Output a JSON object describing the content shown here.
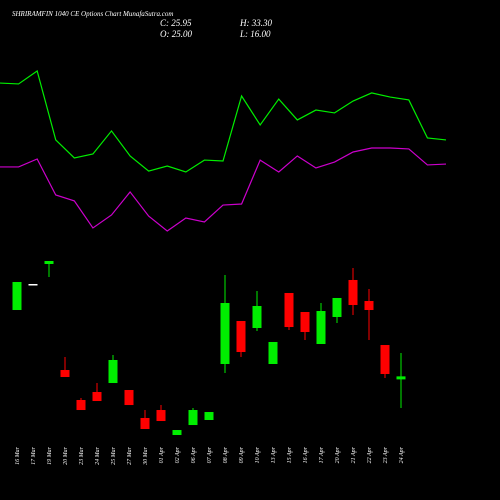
{
  "header": {
    "title": "SHRIRAMFIN 1040 CE Options Chart MunafaSutra.com",
    "close": "C: 25.95",
    "high": "H: 33.30",
    "open": "O: 25.00",
    "low": "L: 16.00"
  },
  "chart_data": [
    {
      "type": "candlestick",
      "categories": [
        "16 Mar",
        "17 Mar",
        "19 Mar",
        "20 Mar",
        "23 Mar",
        "24 Mar",
        "25 Mar",
        "27 Mar",
        "30 Mar",
        "01 Apr",
        "02 Apr",
        "06 Apr",
        "07 Apr",
        "08 Apr",
        "09 Apr",
        "10 Apr",
        "13 Apr",
        "15 Apr",
        "16 Apr",
        "17 Apr",
        "20 Apr",
        "21 Apr",
        "22 Apr",
        "23 Apr",
        "24 Apr"
      ],
      "open": [
        46.82,
        55,
        61.29,
        27.95,
        18.52,
        21.03,
        23.86,
        21.66,
        12.86,
        15.37,
        7.51,
        10.65,
        12.23,
        29.84,
        43.36,
        41.16,
        29.84,
        52.17,
        46.19,
        36.13,
        44.62,
        56.26,
        49.65,
        35.81,
        25
      ],
      "high": [
        55.63,
        55,
        62.23,
        32.04,
        19.15,
        23.86,
        32.67,
        21.66,
        15.37,
        16.94,
        9.08,
        16,
        14.74,
        57.83,
        43.36,
        52.8,
        36.76,
        52.17,
        46.19,
        49.02,
        50.6,
        60.03,
        53.43,
        35.81,
        33.3
      ],
      "low": [
        46.82,
        55,
        57.2,
        25.75,
        15.37,
        18.2,
        23.86,
        16.94,
        9.4,
        11.91,
        7.51,
        10.65,
        12.23,
        27.01,
        32.04,
        40.22,
        29.84,
        40.53,
        37.39,
        36.13,
        42.73,
        45.25,
        37.39,
        25.44,
        16
      ],
      "close": [
        55.63,
        55,
        62.23,
        25.75,
        15.37,
        18.2,
        31.1,
        16.94,
        9.4,
        11.91,
        9.08,
        15.37,
        14.74,
        49.02,
        33.61,
        48.08,
        36.76,
        41.47,
        39.9,
        46.51,
        50.6,
        48.39,
        46.82,
        26.69,
        25.95
      ],
      "up_color": "#00ee00",
      "down_color": "#ff0000",
      "flat_color": "#ffffff",
      "ylim": [
        5.94,
        65.69
      ]
    },
    {
      "type": "line",
      "series": [
        {
          "color": "#00ee00",
          "values": [
            87.2,
            86.7,
            93.9,
            55.6,
            45.6,
            47.8,
            60.6,
            46.7,
            38.3,
            41.1,
            37.8,
            44.4,
            43.9,
            80,
            63.9,
            78.3,
            66.7,
            72.2,
            70.6,
            77.2,
            81.7,
            79.4,
            77.8,
            56.7,
            55.6
          ]
        },
        {
          "color": "#cc00cc",
          "values": [
            40.6,
            40.6,
            45,
            25,
            21.7,
            6.7,
            13.9,
            26.7,
            13.3,
            5,
            12.2,
            10,
            19.4,
            20,
            44.4,
            37.8,
            46.7,
            40,
            43.3,
            48.9,
            51.1,
            51.1,
            50.6,
            41.7,
            42.2
          ]
        }
      ],
      "ylim": [
        0,
        100
      ]
    }
  ]
}
